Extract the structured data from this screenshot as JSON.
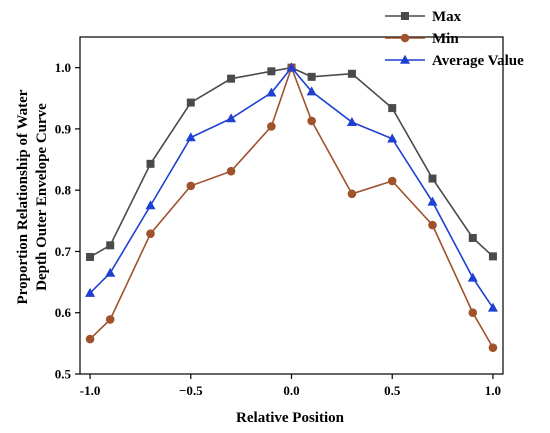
{
  "chart_data": {
    "type": "line",
    "title": "",
    "xlabel": "Relative Position",
    "ylabel_lines": [
      "Proportion Relationship of Water",
      "Depth Outer Envelope Curve"
    ],
    "xlim": [
      -1.05,
      1.05
    ],
    "ylim": [
      0.5,
      1.05
    ],
    "xticks": [
      -1.0,
      -0.5,
      0.0,
      0.5,
      1.0
    ],
    "xtick_labels": [
      "-1.0",
      "−0.5",
      "0.0",
      "0.5",
      "1.0"
    ],
    "yticks": [
      0.5,
      0.6,
      0.7,
      0.8,
      0.9,
      1.0
    ],
    "ytick_labels": [
      "0.5",
      "0.6",
      "0.7",
      "0.8",
      "0.9",
      "1.0"
    ],
    "grid": false,
    "legend_position": "top-right",
    "x": [
      -1.0,
      -0.9,
      -0.7,
      -0.5,
      -0.3,
      -0.1,
      0.0,
      0.1,
      0.3,
      0.5,
      0.7,
      0.9,
      1.0
    ],
    "series": [
      {
        "name": "Max",
        "color": "#4a4a4a",
        "marker": "square",
        "values": [
          0.691,
          0.71,
          0.843,
          0.943,
          0.982,
          0.994,
          1.0,
          0.985,
          0.99,
          0.934,
          0.819,
          0.722,
          0.692
        ]
      },
      {
        "name": "Min",
        "color": "#a0522d",
        "marker": "circle",
        "values": [
          0.557,
          0.589,
          0.729,
          0.807,
          0.831,
          0.904,
          1.0,
          0.913,
          0.794,
          0.815,
          0.743,
          0.6,
          0.543
        ]
      },
      {
        "name": "Average Value",
        "color": "#1f3fd1",
        "marker": "triangle",
        "values": [
          0.632,
          0.665,
          0.775,
          0.886,
          0.917,
          0.959,
          1.0,
          0.961,
          0.911,
          0.884,
          0.781,
          0.657,
          0.608
        ]
      }
    ]
  }
}
